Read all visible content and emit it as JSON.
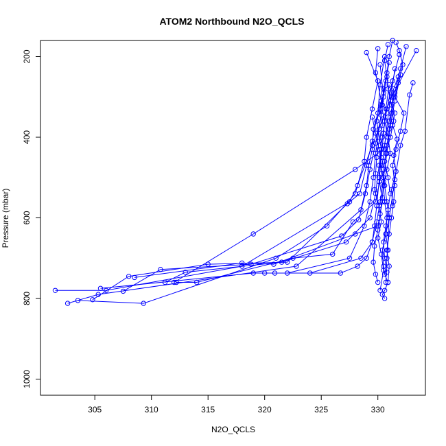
{
  "chart_data": {
    "type": "line",
    "title": "ATOM2 Northbound N2O_QCLS",
    "xlabel": "N2O_QCLS",
    "ylabel": "Pressure (mbar)",
    "xlim": [
      300.2,
      334.2
    ],
    "ylim": [
      1040,
      160
    ],
    "y_reversed": true,
    "x_ticks": [
      305,
      310,
      315,
      320,
      325,
      330
    ],
    "y_ticks": [
      200,
      400,
      600,
      800,
      1000
    ],
    "marker": "open-circle",
    "line_color": "#0000ff",
    "grid": false,
    "legend": "none",
    "series": [
      {
        "x": [
          331.3,
          331.0,
          330.8,
          330.9,
          331.2,
          331.4,
          331.1,
          330.7,
          330.5,
          330.6,
          330.8,
          331.0,
          330.7,
          330.4,
          330.5,
          330.6,
          330.9,
          330.6,
          330.4,
          330.6
        ],
        "y": [
          160,
          200,
          240,
          280,
          320,
          360,
          400,
          440,
          480,
          520,
          560,
          600,
          640,
          680,
          720,
          740,
          760,
          780,
          790,
          800
        ]
      },
      {
        "x": [
          331.6,
          331.9,
          332.2,
          331.8,
          331.5,
          332.3,
          332.0,
          331.6,
          331.3,
          331.5,
          331.4,
          331.2,
          331.0,
          330.8,
          331.0,
          330.9
        ],
        "y": [
          165,
          185,
          220,
          265,
          300,
          340,
          385,
          430,
          470,
          520,
          560,
          600,
          640,
          680,
          720,
          760
        ]
      },
      {
        "x": [
          330.9,
          330.6,
          330.8,
          330.5,
          330.2,
          330.4,
          330.1,
          329.9,
          329.8,
          329.7,
          330.1,
          330.3,
          330.0,
          330.3,
          330.5,
          330.2
        ],
        "y": [
          170,
          210,
          250,
          290,
          330,
          370,
          410,
          450,
          490,
          530,
          570,
          610,
          650,
          690,
          730,
          780
        ]
      },
      {
        "x": [
          332.5,
          332.0,
          331.5,
          331.0,
          330.5,
          328.0,
          319.0,
          312.0
        ],
        "y": [
          175,
          230,
          290,
          360,
          430,
          480,
          640,
          760
        ]
      },
      {
        "x": [
          333.4,
          331.2,
          329.5,
          328.2,
          327.5,
          318.0,
          306.0,
          301.5
        ],
        "y": [
          185,
          300,
          420,
          520,
          560,
          720,
          780,
          780
        ]
      },
      {
        "x": [
          330.0,
          329.8,
          330.3,
          329.6,
          329.5,
          329.2,
          329.0,
          328.5,
          322.8,
          305.3,
          302.6
        ],
        "y": [
          180,
          240,
          310,
          380,
          430,
          470,
          520,
          580,
          720,
          790,
          812
        ]
      },
      {
        "x": [
          333.1,
          332.8,
          332.4,
          332.0,
          331.5,
          331.0,
          330.8,
          330.7
        ],
        "y": [
          265,
          295,
          385,
          420,
          505,
          600,
          700,
          760
        ]
      },
      {
        "x": [
          331.8,
          331.4,
          331.1,
          331.5,
          331.3,
          331.7,
          331.4,
          331.6,
          331.2,
          331.3
        ],
        "y": [
          250,
          280,
          310,
          340,
          370,
          405,
          445,
          485,
          530,
          570
        ]
      },
      {
        "x": [
          329.0,
          330.0,
          329.5,
          329.0,
          328.8,
          328.0,
          325.5,
          321.0,
          309.3,
          303.5
        ],
        "y": [
          190,
          260,
          330,
          400,
          460,
          540,
          620,
          700,
          812,
          805
        ]
      },
      {
        "x": [
          330.6,
          330.2,
          330.0,
          329.5,
          329.0,
          328.4,
          327.3,
          322.0,
          315.0,
          308.0,
          304.8
        ],
        "y": [
          200,
          270,
          340,
          410,
          470,
          540,
          565,
          710,
          715,
          745,
          803
        ]
      },
      {
        "x": [
          331.0,
          330.5,
          330.3,
          329.8,
          329.3,
          328.9,
          328.3,
          326.8,
          318.8,
          310.8,
          307.5
        ],
        "y": [
          215,
          280,
          345,
          415,
          480,
          540,
          605,
          645,
          715,
          728,
          782
        ]
      },
      {
        "x": [
          331.5,
          331.2,
          330.9,
          330.6,
          330.3,
          329.8,
          327.8,
          326.0,
          322.5,
          314.0,
          312.2
        ],
        "y": [
          230,
          290,
          350,
          420,
          490,
          560,
          610,
          690,
          700,
          760,
          760
        ]
      },
      {
        "x": [
          330.2,
          330.5,
          329.9,
          330.3,
          330.1,
          330.4,
          330.0,
          328.0,
          320.8,
          318.0,
          308.5
        ],
        "y": [
          220,
          300,
          360,
          430,
          500,
          560,
          620,
          640,
          715,
          712,
          748
        ]
      },
      {
        "x": [
          331.9,
          331.3,
          330.8,
          330.4,
          330.1,
          329.8,
          329.3,
          327.2,
          321.5,
          313.0,
          311.2
        ],
        "y": [
          195,
          260,
          330,
          400,
          470,
          540,
          600,
          660,
          710,
          735,
          760
        ]
      },
      {
        "x": [
          332.0,
          331.5,
          331.1,
          330.8,
          330.5,
          330.2,
          329.9,
          329.5,
          328.5,
          324.0,
          319.0,
          305.5
        ],
        "y": [
          245,
          310,
          370,
          440,
          500,
          560,
          610,
          660,
          700,
          737,
          737,
          775
        ]
      },
      {
        "x": [
          330.7,
          330.4,
          330.1,
          329.8,
          329.6,
          329.3,
          328.8,
          327.5,
          322.0,
          320.0
        ],
        "y": [
          260,
          320,
          380,
          440,
          500,
          560,
          620,
          700,
          737,
          737
        ]
      },
      {
        "x": [
          331.0,
          330.7,
          330.5,
          330.3,
          330.1,
          329.9,
          329.7,
          329.5,
          329.0,
          328.2,
          326.7,
          320.9
        ],
        "y": [
          270,
          330,
          390,
          450,
          510,
          570,
          620,
          660,
          700,
          720,
          737,
          737
        ]
      },
      {
        "x": [
          329.5,
          329.8,
          330.1,
          330.3,
          330.5,
          330.4,
          330.2,
          330.0,
          329.7,
          329.6,
          329.8,
          330.0
        ],
        "y": [
          350,
          390,
          430,
          470,
          510,
          550,
          590,
          630,
          670,
          710,
          740,
          760
        ]
      },
      {
        "x": [
          330.3,
          330.6,
          330.9,
          331.1,
          330.8,
          330.5,
          330.6,
          330.8,
          330.7,
          330.9
        ],
        "y": [
          320,
          360,
          400,
          440,
          480,
          520,
          560,
          600,
          640,
          680
        ]
      },
      {
        "x": [
          331.4,
          331.2,
          331.0,
          330.8,
          330.6,
          330.9,
          331.1,
          330.9,
          330.7,
          330.5,
          330.6,
          330.8
        ],
        "y": [
          300,
          340,
          380,
          420,
          460,
          500,
          540,
          580,
          620,
          660,
          700,
          735
        ]
      }
    ]
  }
}
